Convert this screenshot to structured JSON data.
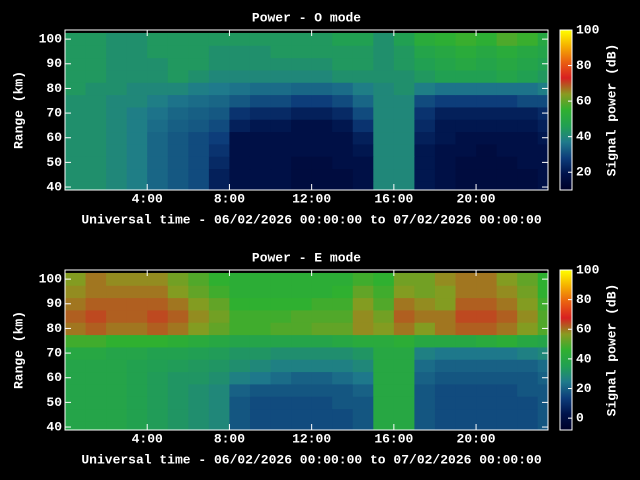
{
  "chart_data": [
    {
      "type": "heatmap",
      "title": "Power - O mode",
      "ylabel": "Range (km)",
      "xlabel": "Universal time - 06/02/2026 00:00:00 to 07/02/2026 00:00:00",
      "colorbar_label": "Signal power (dB)",
      "x": [
        0,
        1,
        2,
        3,
        4,
        5,
        6,
        7,
        8,
        9,
        10,
        11,
        12,
        13,
        14,
        15,
        16,
        17,
        18,
        19,
        20,
        21,
        22,
        23
      ],
      "y": [
        40,
        45,
        50,
        55,
        60,
        65,
        70,
        75,
        80,
        85,
        90,
        95,
        100
      ],
      "xlim": [
        0,
        23.5
      ],
      "ylim": [
        38.8,
        103.7
      ],
      "zlim": [
        10,
        100
      ],
      "xticks": [
        {
          "value": 4,
          "label": "4:00"
        },
        {
          "value": 8,
          "label": "8:00"
        },
        {
          "value": 12,
          "label": "12:00"
        },
        {
          "value": 16,
          "label": "16:00"
        },
        {
          "value": 20,
          "label": "20:00"
        }
      ],
      "yticks": [
        40,
        50,
        60,
        70,
        80,
        90,
        100
      ],
      "zticks": [
        20,
        40,
        60,
        80,
        100
      ],
      "colormap": [
        "#000028",
        "#00124a",
        "#0d3d7a",
        "#1f7a8c",
        "#21a052",
        "#2fb030",
        "#8a9a20",
        "#d82020",
        "#ea6010",
        "#f5b000",
        "#ffff00"
      ],
      "z": [
        [
          42,
          42,
          40,
          38,
          34,
          32,
          30,
          22,
          18,
          18,
          18,
          16,
          16,
          16,
          18,
          40,
          40,
          20,
          18,
          16,
          16,
          16,
          16,
          18
        ],
        [
          42,
          42,
          40,
          38,
          34,
          32,
          30,
          22,
          18,
          18,
          18,
          16,
          16,
          16,
          18,
          40,
          40,
          20,
          18,
          16,
          16,
          16,
          16,
          18
        ],
        [
          42,
          42,
          40,
          38,
          34,
          32,
          30,
          24,
          18,
          18,
          18,
          16,
          16,
          18,
          18,
          40,
          40,
          20,
          18,
          16,
          16,
          16,
          18,
          18
        ],
        [
          42,
          42,
          40,
          38,
          34,
          32,
          30,
          26,
          18,
          18,
          18,
          18,
          18,
          18,
          20,
          40,
          40,
          20,
          18,
          18,
          16,
          18,
          18,
          18
        ],
        [
          42,
          42,
          40,
          38,
          34,
          32,
          30,
          28,
          18,
          18,
          18,
          18,
          18,
          18,
          22,
          40,
          40,
          22,
          20,
          18,
          18,
          18,
          18,
          20
        ],
        [
          42,
          42,
          40,
          38,
          35,
          33,
          32,
          30,
          22,
          20,
          20,
          18,
          18,
          20,
          26,
          40,
          40,
          24,
          20,
          20,
          20,
          20,
          20,
          22
        ],
        [
          42,
          42,
          40,
          38,
          36,
          34,
          33,
          32,
          26,
          24,
          24,
          22,
          22,
          24,
          30,
          40,
          40,
          26,
          22,
          22,
          22,
          22,
          22,
          24
        ],
        [
          42,
          42,
          40,
          40,
          38,
          36,
          35,
          34,
          32,
          30,
          30,
          28,
          28,
          30,
          34,
          40,
          40,
          30,
          28,
          28,
          28,
          28,
          30,
          30
        ],
        [
          44,
          42,
          42,
          40,
          40,
          40,
          38,
          37,
          36,
          35,
          35,
          34,
          34,
          35,
          38,
          40,
          42,
          38,
          36,
          36,
          36,
          36,
          36,
          38
        ],
        [
          44,
          44,
          42,
          42,
          42,
          44,
          42,
          40,
          40,
          40,
          40,
          40,
          40,
          42,
          42,
          42,
          42,
          44,
          46,
          46,
          46,
          48,
          46,
          44
        ],
        [
          44,
          44,
          42,
          42,
          42,
          44,
          44,
          42,
          42,
          42,
          42,
          42,
          42,
          44,
          44,
          42,
          44,
          46,
          48,
          50,
          48,
          50,
          48,
          46
        ],
        [
          44,
          44,
          42,
          42,
          44,
          44,
          44,
          42,
          42,
          42,
          44,
          44,
          44,
          44,
          44,
          42,
          44,
          48,
          50,
          52,
          50,
          52,
          50,
          48
        ],
        [
          44,
          44,
          42,
          42,
          44,
          44,
          44,
          44,
          44,
          44,
          44,
          44,
          44,
          46,
          46,
          42,
          46,
          52,
          54,
          56,
          54,
          58,
          56,
          50
        ]
      ]
    },
    {
      "type": "heatmap",
      "title": "Power - E mode",
      "ylabel": "Range (km)",
      "xlabel": "Universal time - 06/02/2026 00:00:00 to 07/02/2026 00:00:00",
      "colorbar_label": "Signal power (dB)",
      "x": [
        0,
        1,
        2,
        3,
        4,
        5,
        6,
        7,
        8,
        9,
        10,
        11,
        12,
        13,
        14,
        15,
        16,
        17,
        18,
        19,
        20,
        21,
        22,
        23
      ],
      "y": [
        40,
        45,
        50,
        55,
        60,
        65,
        70,
        75,
        80,
        85,
        90,
        95,
        100
      ],
      "xlim": [
        0,
        23.5
      ],
      "ylim": [
        38.8,
        103.7
      ],
      "zlim": [
        -8,
        100
      ],
      "xticks": [
        {
          "value": 4,
          "label": "4:00"
        },
        {
          "value": 8,
          "label": "8:00"
        },
        {
          "value": 12,
          "label": "12:00"
        },
        {
          "value": 16,
          "label": "16:00"
        },
        {
          "value": 20,
          "label": "20:00"
        }
      ],
      "yticks": [
        40,
        50,
        60,
        70,
        80,
        90,
        100
      ],
      "zticks": [
        0,
        20,
        40,
        60,
        80,
        100
      ],
      "colormap": [
        "#000028",
        "#00124a",
        "#0d3d7a",
        "#1f7a8c",
        "#21a052",
        "#2fb030",
        "#8a9a20",
        "#d82020",
        "#ea6010",
        "#f5b000",
        "#ffff00"
      ],
      "z": [
        [
          38,
          38,
          38,
          36,
          34,
          32,
          30,
          28,
          18,
          16,
          16,
          16,
          16,
          16,
          18,
          40,
          40,
          18,
          16,
          16,
          16,
          16,
          16,
          18
        ],
        [
          38,
          38,
          38,
          36,
          34,
          32,
          30,
          28,
          18,
          16,
          16,
          16,
          16,
          16,
          18,
          40,
          40,
          18,
          16,
          16,
          16,
          16,
          16,
          18
        ],
        [
          38,
          38,
          38,
          36,
          34,
          32,
          30,
          28,
          18,
          16,
          16,
          16,
          16,
          18,
          18,
          40,
          40,
          18,
          16,
          16,
          16,
          16,
          16,
          18
        ],
        [
          38,
          38,
          38,
          36,
          34,
          32,
          30,
          28,
          20,
          18,
          18,
          18,
          18,
          18,
          20,
          40,
          40,
          18,
          16,
          16,
          16,
          16,
          18,
          18
        ],
        [
          38,
          38,
          38,
          36,
          34,
          32,
          32,
          30,
          26,
          24,
          22,
          20,
          20,
          22,
          24,
          40,
          40,
          20,
          18,
          18,
          18,
          18,
          18,
          20
        ],
        [
          38,
          38,
          38,
          36,
          35,
          34,
          33,
          32,
          30,
          28,
          26,
          26,
          26,
          26,
          28,
          40,
          40,
          22,
          20,
          20,
          20,
          20,
          20,
          22
        ],
        [
          40,
          40,
          38,
          38,
          36,
          36,
          35,
          34,
          32,
          32,
          30,
          30,
          30,
          30,
          32,
          40,
          40,
          26,
          24,
          24,
          24,
          24,
          26,
          28
        ],
        [
          48,
          48,
          46,
          46,
          46,
          44,
          42,
          40,
          38,
          38,
          38,
          38,
          38,
          40,
          42,
          42,
          44,
          40,
          40,
          40,
          42,
          44,
          40,
          38
        ],
        [
          60,
          62,
          60,
          60,
          62,
          60,
          56,
          52,
          48,
          48,
          50,
          50,
          52,
          52,
          58,
          56,
          60,
          56,
          60,
          62,
          62,
          60,
          56,
          50
        ],
        [
          62,
          64,
          62,
          62,
          64,
          62,
          58,
          54,
          48,
          48,
          48,
          50,
          50,
          50,
          58,
          54,
          62,
          60,
          60,
          64,
          64,
          62,
          58,
          50
        ],
        [
          60,
          62,
          62,
          62,
          62,
          60,
          56,
          52,
          46,
          46,
          46,
          46,
          48,
          48,
          56,
          50,
          60,
          58,
          56,
          62,
          62,
          60,
          56,
          48
        ],
        [
          58,
          60,
          60,
          60,
          60,
          56,
          52,
          48,
          44,
          44,
          44,
          44,
          44,
          46,
          52,
          48,
          56,
          54,
          56,
          60,
          60,
          58,
          54,
          46
        ],
        [
          56,
          60,
          58,
          58,
          58,
          54,
          50,
          46,
          44,
          44,
          44,
          44,
          44,
          44,
          48,
          46,
          54,
          54,
          58,
          60,
          60,
          56,
          52,
          46
        ]
      ]
    }
  ]
}
